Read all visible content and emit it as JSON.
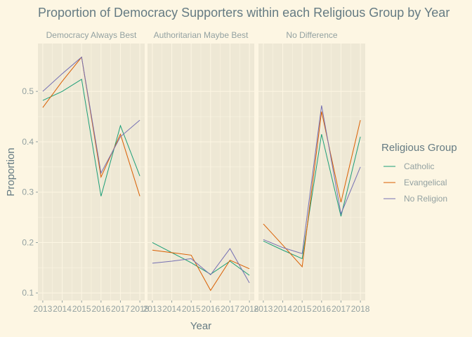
{
  "chart_data": {
    "type": "line",
    "title": "Proportion of Democracy Supporters within each Religious Group by Year",
    "xlabel": "Year",
    "ylabel": "Proportion",
    "x": [
      2013,
      2014,
      2015,
      2016,
      2017,
      2018
    ],
    "x_tick_labels": [
      "2013",
      "2014",
      "2015",
      "2016",
      "2017",
      "2018"
    ],
    "ylim": [
      0.085,
      0.595
    ],
    "y_ticks": [
      0.1,
      0.2,
      0.3,
      0.4,
      0.5
    ],
    "y_tick_labels": [
      "0.1",
      "0.2",
      "0.3",
      "0.4",
      "0.5"
    ],
    "grid": true,
    "legend": {
      "title": "Religious Group",
      "position": "right"
    },
    "series_colors": {
      "Catholic": "#1b9e77",
      "Evangelical": "#d95f02",
      "No Religion": "#7570b3"
    },
    "facets": [
      {
        "label": "Democracy Always Best",
        "series": [
          {
            "name": "Catholic",
            "values": [
              0.482,
              0.5,
              0.524,
              0.292,
              0.432,
              0.332
            ]
          },
          {
            "name": "Evangelical",
            "values": [
              0.468,
              0.52,
              0.568,
              0.33,
              0.415,
              0.292
            ]
          },
          {
            "name": "No Religion",
            "values": [
              0.5,
              0.535,
              0.568,
              0.338,
              0.41,
              0.443
            ]
          }
        ]
      },
      {
        "label": "Authoritarian Maybe Best",
        "series": [
          {
            "name": "Catholic",
            "values": [
              0.2,
              0.18,
              0.16,
              0.137,
              0.163,
              0.135
            ]
          },
          {
            "name": "Evangelical",
            "values": [
              0.185,
              0.18,
              0.175,
              0.105,
              0.165,
              0.148
            ]
          },
          {
            "name": "No Religion",
            "values": [
              0.159,
              0.163,
              0.168,
              0.136,
              0.188,
              0.12
            ]
          }
        ]
      },
      {
        "label": "No Difference",
        "series": [
          {
            "name": "Catholic",
            "values": [
              0.203,
              0.185,
              0.168,
              0.415,
              0.252,
              0.41
            ]
          },
          {
            "name": "Evangelical",
            "values": [
              0.237,
              0.195,
              0.152,
              0.46,
              0.28,
              0.443
            ]
          },
          {
            "name": "No Religion",
            "values": [
              0.206,
              0.19,
              0.178,
              0.472,
              0.257,
              0.35
            ]
          }
        ]
      }
    ]
  }
}
